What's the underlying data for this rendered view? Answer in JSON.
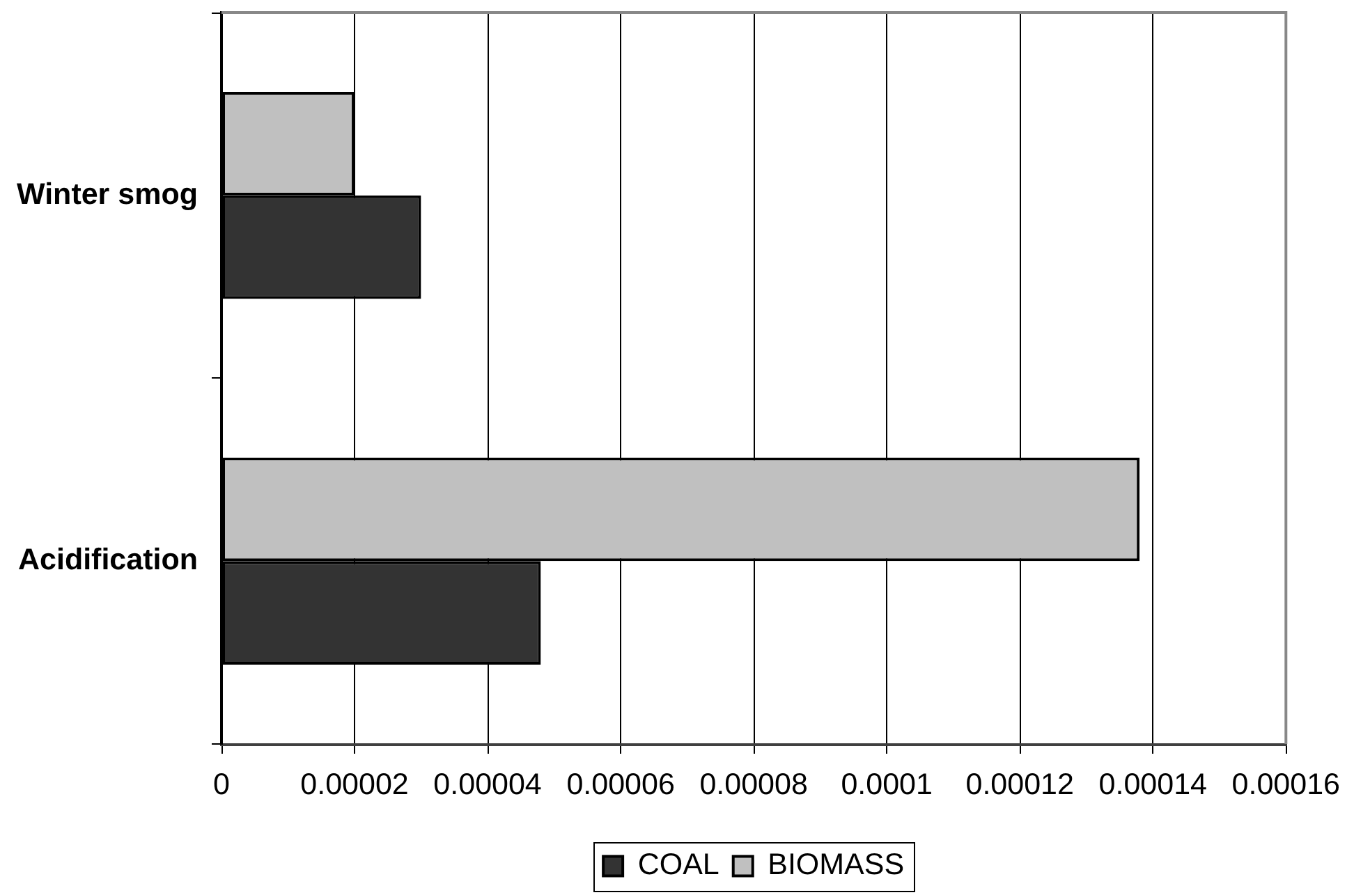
{
  "chart_data": {
    "type": "bar",
    "orientation": "horizontal",
    "categories": [
      "Winter smog",
      "Acidification"
    ],
    "series": [
      {
        "name": "COAL",
        "color": "#333333",
        "values": [
          3e-05,
          4.8e-05
        ]
      },
      {
        "name": "BIOMASS",
        "color": "#c0c0c0",
        "values": [
          2e-05,
          0.000138
        ]
      }
    ],
    "xlim": [
      0,
      0.00016
    ],
    "xticks": [
      0,
      {
        "value": 2e-05,
        "label": "0.00002"
      },
      {
        "value": 4e-05,
        "label": "0.00004"
      },
      {
        "value": 6e-05,
        "label": "0.00006"
      },
      {
        "value": 8e-05,
        "label": "0.00008"
      },
      0.0001,
      0.00012,
      0.00014,
      0.00016
    ],
    "grid": "x",
    "legend": "bottom"
  }
}
